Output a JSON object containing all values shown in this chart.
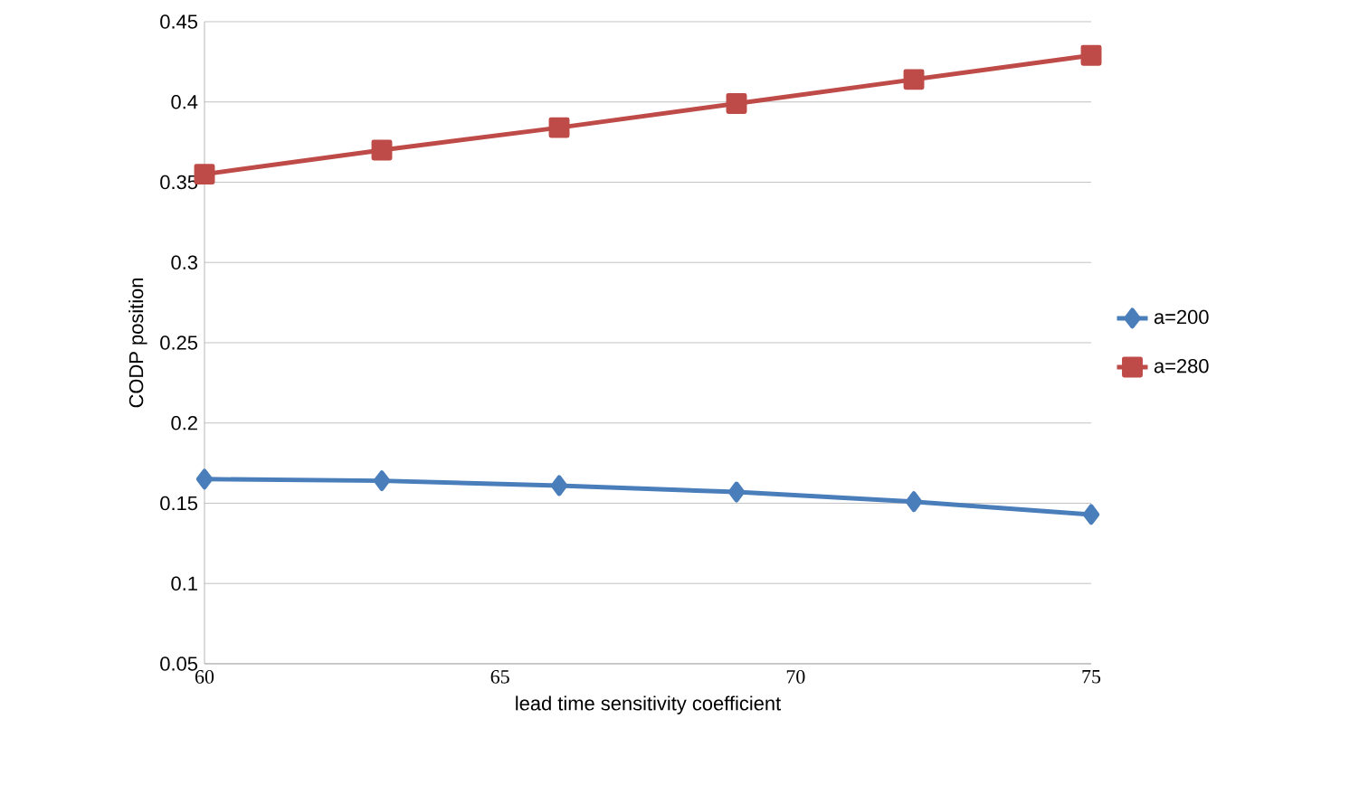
{
  "chart_data": {
    "type": "line",
    "xlabel": "lead time sensitivity coefficient",
    "ylabel": "CODP position",
    "x": [
      60,
      63,
      66,
      69,
      72,
      75
    ],
    "series": [
      {
        "name": "a=200",
        "color": "#4a7ebb",
        "marker": "diamond",
        "values": [
          0.165,
          0.164,
          0.161,
          0.157,
          0.151,
          0.143
        ]
      },
      {
        "name": "a=280",
        "color": "#be4b48",
        "marker": "square",
        "values": [
          0.355,
          0.37,
          0.384,
          0.399,
          0.414,
          0.429
        ]
      }
    ],
    "xlim": [
      60,
      75
    ],
    "xticks": [
      60,
      65,
      70,
      75
    ],
    "ylim": [
      0.05,
      0.45
    ],
    "yticks": [
      0.05,
      0.1,
      0.15,
      0.2,
      0.25,
      0.3,
      0.35,
      0.4,
      0.45
    ],
    "grid": "y",
    "legend": "right",
    "line_style": "solid"
  }
}
